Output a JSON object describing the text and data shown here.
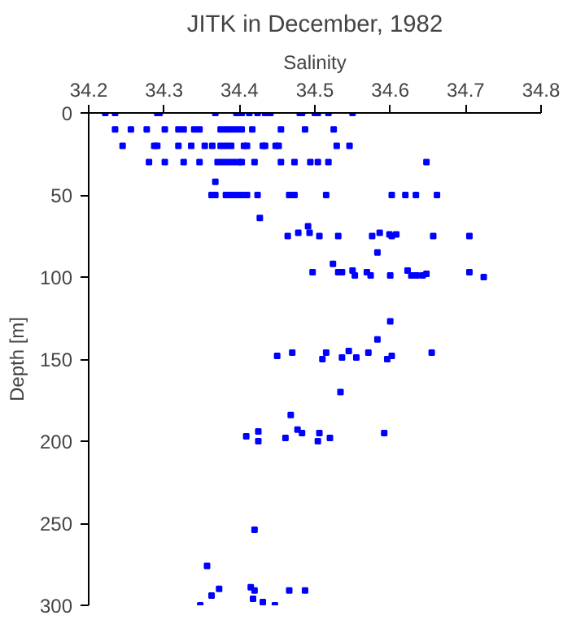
{
  "chart_data": {
    "type": "scatter",
    "title": "JITK in December, 1982",
    "xlabel": "Salinity",
    "ylabel": "Depth [m]",
    "xlim": [
      34.2,
      34.8
    ],
    "xticks": [
      34.2,
      34.3,
      34.4,
      34.5,
      34.6,
      34.7,
      34.8
    ],
    "ylim": [
      300,
      0
    ],
    "yticks": [
      0,
      50,
      100,
      150,
      200,
      250,
      300
    ],
    "marker": "square",
    "grid": false,
    "series": [
      {
        "color": "#0000ff",
        "x": [
          34.222,
          34.235,
          34.291,
          34.294,
          34.368,
          34.396,
          34.403,
          34.413,
          34.424,
          34.434,
          34.441,
          34.48,
          34.483,
          34.5,
          34.504,
          34.518,
          34.55,
          34.235,
          34.256,
          34.277,
          34.301,
          34.319,
          34.326,
          34.34,
          34.347,
          34.375,
          34.382,
          34.389,
          34.396,
          34.403,
          34.417,
          34.455,
          34.487,
          34.525,
          34.245,
          34.287,
          34.291,
          34.319,
          34.336,
          34.354,
          34.364,
          34.375,
          34.382,
          34.389,
          34.406,
          34.41,
          34.431,
          34.434,
          34.448,
          34.452,
          34.529,
          34.546,
          34.28,
          34.301,
          34.326,
          34.347,
          34.371,
          34.378,
          34.385,
          34.392,
          34.399,
          34.403,
          34.42,
          34.455,
          34.473,
          34.494,
          34.504,
          34.518,
          34.648,
          34.368,
          34.363,
          34.368,
          34.382,
          34.389,
          34.396,
          34.403,
          34.41,
          34.424,
          34.466,
          34.473,
          34.515,
          34.602,
          34.62,
          34.634,
          34.662,
          34.427,
          34.464,
          34.478,
          34.491,
          34.493,
          34.506,
          34.531,
          34.576,
          34.586,
          34.599,
          34.602,
          34.608,
          34.657,
          34.705,
          34.583,
          34.524,
          34.497,
          34.531,
          34.536,
          34.55,
          34.553,
          34.569,
          34.574,
          34.6,
          34.623,
          34.628,
          34.635,
          34.643,
          34.648,
          34.705,
          34.724,
          34.6,
          34.583,
          34.45,
          34.47,
          34.51,
          34.515,
          34.536,
          34.545,
          34.555,
          34.571,
          34.596,
          34.602,
          34.655,
          34.534,
          34.468,
          34.409,
          34.425,
          34.425,
          34.461,
          34.477,
          34.483,
          34.504,
          34.506,
          34.52,
          34.592,
          34.42,
          34.357,
          34.348,
          34.363,
          34.373,
          34.415,
          34.418,
          34.42,
          34.431,
          34.447,
          34.466,
          34.487
        ],
        "values": [
          0,
          0,
          0,
          0,
          0,
          0,
          0,
          0,
          0,
          0,
          0,
          0,
          0,
          0,
          0,
          0,
          0,
          10,
          10,
          10,
          10,
          10,
          10,
          10,
          10,
          10,
          10,
          10,
          10,
          10,
          10,
          10,
          10,
          10,
          20,
          20,
          20,
          20,
          20,
          20,
          20,
          20,
          20,
          20,
          20,
          20,
          20,
          20,
          20,
          20,
          20,
          20,
          30,
          30,
          30,
          30,
          30,
          30,
          30,
          30,
          30,
          30,
          30,
          30,
          30,
          30,
          30,
          30,
          30,
          42,
          50,
          50,
          50,
          50,
          50,
          50,
          50,
          50,
          50,
          50,
          50,
          50,
          50,
          50,
          50,
          64,
          75,
          73,
          69,
          73,
          75,
          75,
          75,
          73,
          74,
          75,
          74,
          75,
          75,
          85,
          92,
          97,
          97,
          97,
          96,
          99,
          97,
          99,
          99,
          96,
          99,
          99,
          99,
          98,
          97,
          100,
          127,
          138,
          148,
          146,
          150,
          146,
          149,
          145,
          149,
          146,
          150,
          148,
          146,
          170,
          184,
          197,
          194,
          200,
          198,
          193,
          195,
          200,
          195,
          198,
          195,
          254,
          276,
          300,
          294,
          290,
          289,
          296,
          291,
          298,
          300,
          291,
          291
        ]
      }
    ]
  }
}
